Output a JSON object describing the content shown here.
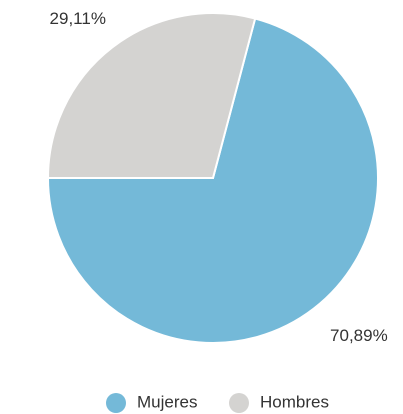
{
  "chart_data": {
    "type": "pie",
    "categories": [
      "Mujeres",
      "Hombres"
    ],
    "values": [
      70.89,
      29.11
    ],
    "value_labels": [
      "70,89%",
      "29,11%"
    ],
    "colors": [
      "#74b9d8",
      "#d4d3d1"
    ],
    "legend": "bottom"
  }
}
